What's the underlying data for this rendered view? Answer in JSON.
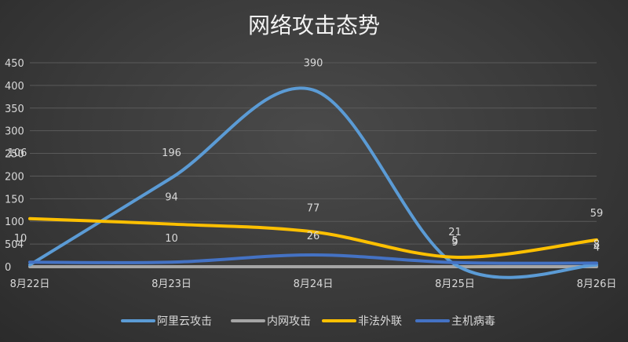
{
  "chart_data": {
    "type": "line",
    "title": "网络攻击态势",
    "categories": [
      "8月22日",
      "8月23日",
      "8月24日",
      "8月25日",
      "8月26日"
    ],
    "ylim": [
      0,
      450
    ],
    "yticks": [
      0,
      50,
      100,
      150,
      200,
      250,
      300,
      350,
      400,
      450
    ],
    "grid": true,
    "legend": "bottom",
    "series": [
      {
        "name": "阿里云攻击",
        "values": [
          4,
          196,
          390,
          5,
          4
        ],
        "color": "#5b9bd5"
      },
      {
        "name": "内网攻击",
        "values": [
          0,
          0,
          0,
          0,
          0
        ],
        "color": "#a5a5a5"
      },
      {
        "name": "非法外联",
        "values": [
          106,
          94,
          77,
          21,
          59
        ],
        "color": "#ffc000"
      },
      {
        "name": "主机病毒",
        "values": [
          10,
          10,
          26,
          9,
          8
        ],
        "color": "#4472c4"
      }
    ],
    "data_labels": [
      {
        "text": "4",
        "cat": 0,
        "value": 4
      },
      {
        "text": "10",
        "cat": 0,
        "value": 10
      },
      {
        "text": "106",
        "cat": 0,
        "value": 106
      },
      {
        "text": "196",
        "cat": 1,
        "value": 196
      },
      {
        "text": "94",
        "cat": 1,
        "value": 94
      },
      {
        "text": "10",
        "cat": 1,
        "value": 10
      },
      {
        "text": "390",
        "cat": 2,
        "value": 390
      },
      {
        "text": "77",
        "cat": 2,
        "value": 77
      },
      {
        "text": "26",
        "cat": 2,
        "value": 26
      },
      {
        "text": "21",
        "cat": 3,
        "value": 21
      },
      {
        "text": "9",
        "cat": 3,
        "value": 9
      },
      {
        "text": "5",
        "cat": 3,
        "value": 5
      },
      {
        "text": "59",
        "cat": 4,
        "value": 59
      },
      {
        "text": "8",
        "cat": 4,
        "value": 8
      },
      {
        "text": "4",
        "cat": 4,
        "value": 4
      }
    ]
  }
}
